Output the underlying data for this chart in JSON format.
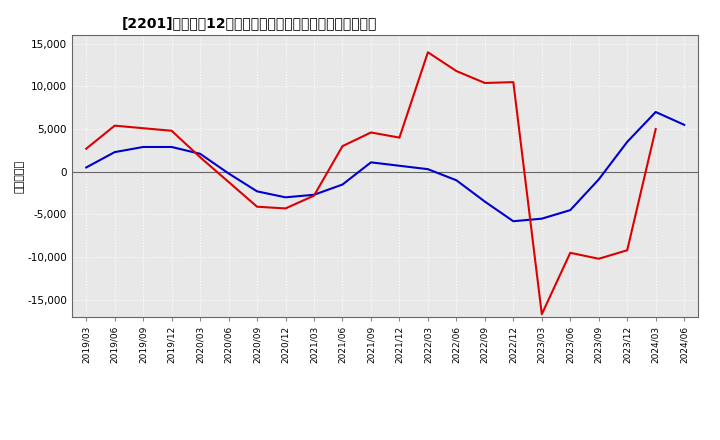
{
  "title": "[2201]　利益だ12か月移動合計の対前年同期増減額の推移",
  "ylabel": "（百万円）",
  "ylim": [
    -17000,
    16000
  ],
  "yticks": [
    -15000,
    -10000,
    -5000,
    0,
    5000,
    10000,
    15000
  ],
  "background_color": "#ffffff",
  "plot_bg_color": "#e8e8e8",
  "grid_color": "#ffffff",
  "line_color_blue": "#0000cc",
  "line_color_red": "#dd0000",
  "x_labels": [
    "2019/03",
    "2019/06",
    "2019/09",
    "2019/12",
    "2020/03",
    "2020/06",
    "2020/09",
    "2020/12",
    "2021/03",
    "2021/06",
    "2021/09",
    "2021/12",
    "2022/03",
    "2022/06",
    "2022/09",
    "2022/12",
    "2023/03",
    "2023/06",
    "2023/09",
    "2023/12",
    "2024/03",
    "2024/06"
  ],
  "blue_values": [
    500,
    2300,
    2900,
    2900,
    2100,
    -200,
    -2300,
    -3000,
    -2700,
    -1500,
    1100,
    700,
    300,
    -1000,
    -3500,
    -5800,
    -5500,
    -4500,
    -900,
    3500,
    7000,
    5500
  ],
  "red_values": [
    2700,
    5400,
    5100,
    4800,
    1700,
    -1200,
    -4100,
    -4300,
    -2800,
    3000,
    4600,
    4000,
    14000,
    11800,
    10400,
    10500,
    -16700,
    -9500,
    -10200,
    -9200,
    5000,
    null
  ]
}
